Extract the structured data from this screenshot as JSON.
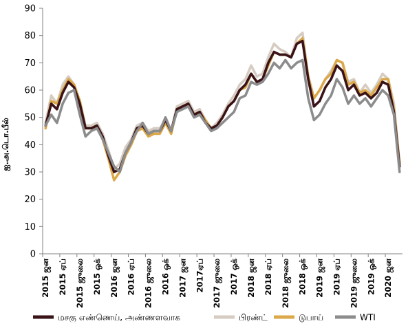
{
  "colors": {
    "crude_basket": "#3a1318",
    "brent": "#d6ccc2",
    "dubai": "#dba84a",
    "wti": "#8c8c8c",
    "axis": "#808080"
  },
  "chart_data": {
    "type": "line",
    "title": "",
    "xlabel": "",
    "ylabel": "ஐ.அ.டொ.பீல்",
    "ylim": [
      0,
      90
    ],
    "yticks": [
      0,
      10,
      20,
      30,
      40,
      50,
      60,
      70,
      80,
      90
    ],
    "grid": false,
    "legend_position": "bottom",
    "x": [
      "2015-01",
      "2015-02",
      "2015-03",
      "2015-04",
      "2015-05",
      "2015-06",
      "2015-07",
      "2015-08",
      "2015-09",
      "2015-10",
      "2015-11",
      "2015-12",
      "2016-01",
      "2016-02",
      "2016-03",
      "2016-04",
      "2016-05",
      "2016-06",
      "2016-07",
      "2016-08",
      "2016-09",
      "2016-10",
      "2016-11",
      "2016-12",
      "2017-01",
      "2017-02",
      "2017-03",
      "2017-04",
      "2017-05",
      "2017-06",
      "2017-07",
      "2017-08",
      "2017-09",
      "2017-10",
      "2017-11",
      "2017-12",
      "2018-01",
      "2018-02",
      "2018-03",
      "2018-04",
      "2018-05",
      "2018-06",
      "2018-07",
      "2018-08",
      "2018-09",
      "2018-10",
      "2018-11",
      "2018-12",
      "2019-01",
      "2019-02",
      "2019-03",
      "2019-04",
      "2019-05",
      "2019-06",
      "2019-07",
      "2019-08",
      "2019-09",
      "2019-10",
      "2019-11",
      "2019-12",
      "2020-01",
      "2020-02",
      "2020-03"
    ],
    "x_tick_labels": [
      {
        "index": 0,
        "label": "2015 ஜன"
      },
      {
        "index": 3,
        "label": "2015 ஏப்"
      },
      {
        "index": 6,
        "label": "2015 ஜுலை"
      },
      {
        "index": 9,
        "label": "2015 ஒக்"
      },
      {
        "index": 12,
        "label": "2016 ஜன"
      },
      {
        "index": 15,
        "label": "2016 ஏப்"
      },
      {
        "index": 18,
        "label": "2016 ஜுலை"
      },
      {
        "index": 21,
        "label": "2016 ஒக்"
      },
      {
        "index": 24,
        "label": "2017 ஜன"
      },
      {
        "index": 27,
        "label": "2017ஏப்"
      },
      {
        "index": 30,
        "label": "2017 ஜுலை"
      },
      {
        "index": 33,
        "label": "2017 ஒக்"
      },
      {
        "index": 36,
        "label": "2018 ஜன"
      },
      {
        "index": 39,
        "label": "2018 ஏப்"
      },
      {
        "index": 42,
        "label": "2018 ஜுலை"
      },
      {
        "index": 45,
        "label": "2018 ஒக்"
      },
      {
        "index": 48,
        "label": "2019 ஜன"
      },
      {
        "index": 51,
        "label": "2019 ஏப்"
      },
      {
        "index": 54,
        "label": "2019 ஜுலை"
      },
      {
        "index": 57,
        "label": "2019 ஒக்"
      },
      {
        "index": 60,
        "label": "2020 ஜன"
      }
    ],
    "series": [
      {
        "name": "பிரண்ட்",
        "key": "brent",
        "values": [
          48,
          58,
          55,
          62,
          65,
          62,
          56,
          47,
          47,
          48,
          44,
          38,
          31,
          33,
          39,
          42,
          47,
          48,
          45,
          46,
          46,
          49,
          45,
          54,
          55,
          56,
          52,
          53,
          49,
          46,
          48,
          51,
          55,
          58,
          62,
          64,
          69,
          65,
          66,
          72,
          77,
          75,
          74,
          72,
          79,
          81,
          65,
          57,
          60,
          64,
          67,
          71,
          70,
          63,
          64,
          59,
          62,
          59,
          62,
          66,
          64,
          55,
          33
        ]
      },
      {
        "name": "டுபாய்",
        "key": "dubai",
        "values": [
          46,
          56,
          55,
          60,
          64,
          62,
          56,
          46,
          46,
          47,
          42,
          35,
          27,
          30,
          36,
          40,
          45,
          46,
          43,
          44,
          44,
          48,
          44,
          53,
          54,
          55,
          51,
          52,
          49,
          46,
          47,
          50,
          54,
          56,
          60,
          61,
          66,
          63,
          64,
          69,
          74,
          73,
          73,
          72,
          77,
          79,
          65,
          57,
          60,
          64,
          66,
          71,
          70,
          62,
          63,
          59,
          60,
          58,
          61,
          64,
          64,
          53,
          33
        ]
      },
      {
        "name": "மசகு எண்ணெய், அண்ணளவாக",
        "key": "crude_basket",
        "values": [
          47,
          55,
          53,
          59,
          63,
          61,
          55,
          46,
          46,
          47,
          43,
          36,
          30,
          31,
          37,
          41,
          46,
          47,
          44,
          45,
          45,
          49,
          45,
          53,
          54,
          55,
          51,
          52,
          48,
          46,
          47,
          50,
          54,
          56,
          60,
          62,
          66,
          63,
          64,
          70,
          74,
          73,
          73,
          72,
          77,
          78,
          64,
          54,
          56,
          61,
          64,
          69,
          67,
          60,
          62,
          58,
          59,
          57,
          59,
          63,
          62,
          52,
          32
        ]
      },
      {
        "name": "WTI",
        "key": "wti",
        "values": [
          47,
          51,
          48,
          55,
          59,
          60,
          51,
          43,
          45,
          46,
          42,
          37,
          32,
          30,
          37,
          41,
          45,
          48,
          44,
          45,
          45,
          50,
          45,
          52,
          53,
          54,
          50,
          51,
          48,
          45,
          46,
          48,
          50,
          52,
          57,
          58,
          63,
          62,
          63,
          66,
          70,
          68,
          71,
          68,
          70,
          71,
          57,
          49,
          51,
          55,
          58,
          64,
          61,
          55,
          58,
          55,
          57,
          54,
          57,
          60,
          58,
          51,
          30
        ]
      }
    ]
  }
}
